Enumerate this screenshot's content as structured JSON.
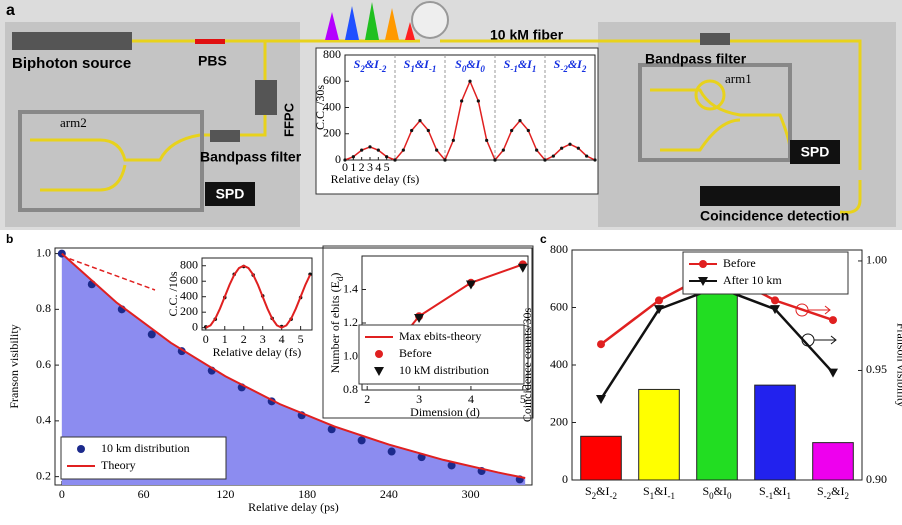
{
  "diagram": {
    "panel": "a",
    "labels": {
      "source": "Biphoton source",
      "pbs": "PBS",
      "ffpc": "FFPC",
      "fiber": "10 kM fiber",
      "filter_right": "Bandpass filter",
      "filter_left": "Bandpass filter",
      "arm1": "arm1",
      "arm2": "arm2",
      "spd_left": "SPD",
      "spd_right": "SPD",
      "coincidence": "Coincidence detection"
    }
  },
  "chart_data": [
    {
      "panel": "b",
      "type": "line",
      "xlabel": "Relative delay (ps)",
      "ylabel": "Franson visibility",
      "xlim": [
        -5,
        345
      ],
      "ylim": [
        0.17,
        1.02
      ],
      "xticks": [
        0,
        60,
        120,
        180,
        240,
        300
      ],
      "yticks": [
        0.2,
        0.4,
        0.6,
        0.8,
        {
          "value": 1,
          "label": "1.0"
        }
      ],
      "legend": "lower left",
      "series": [
        {
          "name": "10 km distribution",
          "style": "points",
          "marker": "circle",
          "color": "#1c2a8c",
          "x": [
            0,
            22,
            44,
            66,
            88,
            110,
            132,
            154,
            176,
            198,
            220,
            242,
            264,
            286,
            308,
            336
          ],
          "values": [
            1.0,
            0.89,
            0.8,
            0.71,
            0.65,
            0.58,
            0.52,
            0.47,
            0.42,
            0.37,
            0.33,
            0.29,
            0.27,
            0.24,
            0.22,
            0.19
          ]
        },
        {
          "name": "Theory",
          "style": "line",
          "color": "#e02020",
          "area_color": "#8c8cf0",
          "x": [
            0,
            40,
            80,
            120,
            160,
            200,
            240,
            280,
            320,
            340
          ],
          "values": [
            1,
            0.825,
            0.68,
            0.56,
            0.46,
            0.38,
            0.315,
            0.26,
            0.215,
            0.195
          ]
        }
      ]
    },
    {
      "type": "line",
      "xlabel": "Relative delay (fs)",
      "ylabel": "C.C. /10s",
      "xlim": [
        -0.2,
        5.6
      ],
      "ylim": [
        -30,
        900
      ],
      "xticks": [
        0,
        1,
        2,
        3,
        4,
        5
      ],
      "yticks": [
        0,
        200,
        400,
        600,
        800
      ],
      "series": [
        {
          "name": "data",
          "style": "points",
          "marker": "dot",
          "color": "#111111",
          "x": [
            0,
            0.5,
            1,
            1.5,
            2,
            2.5,
            3,
            3.5,
            4,
            4.5,
            5,
            5.5
          ],
          "values": [
            10,
            110,
            390,
            690,
            790,
            680,
            410,
            120,
            15,
            110,
            390,
            690
          ]
        },
        {
          "name": "fit",
          "style": "line",
          "color": "#e02020",
          "x": [
            0,
            0.25,
            0.5,
            0.75,
            1,
            1.25,
            1.5,
            1.75,
            2,
            2.25,
            2.5,
            2.75,
            3,
            3.25,
            3.5,
            3.75,
            4,
            4.25,
            4.5,
            4.75,
            5,
            5.25,
            5.5
          ],
          "values": [
            0,
            30,
            117,
            247,
            400,
            553,
            683,
            770,
            800,
            770,
            683,
            553,
            400,
            247,
            117,
            30,
            0,
            30,
            117,
            247,
            400,
            553,
            683
          ]
        }
      ]
    },
    {
      "type": "line",
      "xlabel": "Dimension (d)",
      "ylabel": [
        "Number of ebits (E",
        "d",
        ")"
      ],
      "xlim": [
        1.9,
        5.1
      ],
      "ylim": [
        0.8,
        1.6
      ],
      "xticks": [
        2,
        3,
        4,
        5
      ],
      "yticks": [
        0.8,
        {
          "value": 1,
          "label": "1.0"
        },
        1.2,
        1.4
      ],
      "legend": "lower right",
      "series": [
        {
          "name": "Max ebits-theory",
          "style": "line",
          "color": "#e02020",
          "x": [
            2,
            3,
            4,
            5
          ],
          "values": [
            0.86,
            1.24,
            1.44,
            1.55
          ]
        },
        {
          "name": "Before",
          "style": "points",
          "marker": "circle",
          "color": "#e02020",
          "x": [
            2,
            3,
            4,
            5
          ],
          "values": [
            0.86,
            1.24,
            1.44,
            1.55
          ]
        },
        {
          "name": "10 kM distribution",
          "style": "points",
          "marker": "triangle",
          "color": "#111111",
          "x": [
            2,
            3,
            4,
            5
          ],
          "values": [
            0.86,
            1.23,
            1.43,
            1.53
          ]
        }
      ]
    },
    {
      "panel": "c",
      "type": "bar",
      "ylabel": "Coincidence counts/30s",
      "y2label": "Franson visibility",
      "categories": [
        [
          "S",
          "2",
          "&I",
          "-2"
        ],
        [
          "S",
          "1",
          "&I",
          "-1"
        ],
        [
          "S",
          "0",
          "&I",
          "0"
        ],
        [
          "S",
          "-1",
          "&I",
          "1"
        ],
        [
          "S",
          "-2",
          "&I",
          "2"
        ]
      ],
      "values": [
        152,
        315,
        745,
        330,
        130
      ],
      "colors": [
        "#ff0000",
        "#ffff00",
        "#22dd22",
        "#2222ee",
        "#ee00ee"
      ],
      "ylim": [
        0,
        800
      ],
      "yticks": [
        0,
        200,
        400,
        600,
        800
      ],
      "y2lim": [
        0.9,
        1.005
      ],
      "y2ticks": [
        {
          "value": 0.9,
          "label": "0.90"
        },
        0.95,
        {
          "value": 1,
          "label": "1.00"
        }
      ],
      "legend": "upper right",
      "series": [
        {
          "name": "Before",
          "axis": "y2",
          "style": "line+points",
          "marker": "circle",
          "color": "#e02020",
          "values": [
            0.962,
            0.982,
            0.996,
            0.982,
            0.973
          ]
        },
        {
          "name": "After 10 km",
          "axis": "y2",
          "style": "line+points",
          "marker": "triangle",
          "color": "#111111",
          "values": [
            0.937,
            0.978,
            0.988,
            0.978,
            0.949
          ]
        }
      ]
    },
    {
      "type": "fringes",
      "ylabel": "C.C. /30s",
      "xlabel": "Relative delay (fs)",
      "xlim": [
        0,
        6
      ],
      "ylim": [
        0,
        800
      ],
      "yticks": [
        0,
        200,
        400,
        600,
        800
      ],
      "xticks": [
        0,
        1,
        2,
        3,
        4,
        5
      ],
      "segments": [
        {
          "label": [
            "S",
            "2",
            "&I",
            "-2"
          ],
          "values": [
            0,
            25,
            75,
            100,
            75,
            25,
            0
          ]
        },
        {
          "label": [
            "S",
            "1",
            "&I",
            "-1"
          ],
          "values": [
            0,
            75,
            225,
            300,
            225,
            75,
            0
          ]
        },
        {
          "label": [
            "S",
            "0",
            "&I",
            "0"
          ],
          "values": [
            0,
            150,
            450,
            600,
            450,
            150,
            0
          ]
        },
        {
          "label": [
            "S",
            "-1",
            "&I",
            "1"
          ],
          "values": [
            0,
            75,
            225,
            300,
            225,
            75,
            0
          ]
        },
        {
          "label": [
            "S",
            "-2",
            "&I",
            "2"
          ],
          "values": [
            0,
            30,
            90,
            120,
            90,
            30,
            0
          ]
        }
      ]
    }
  ]
}
